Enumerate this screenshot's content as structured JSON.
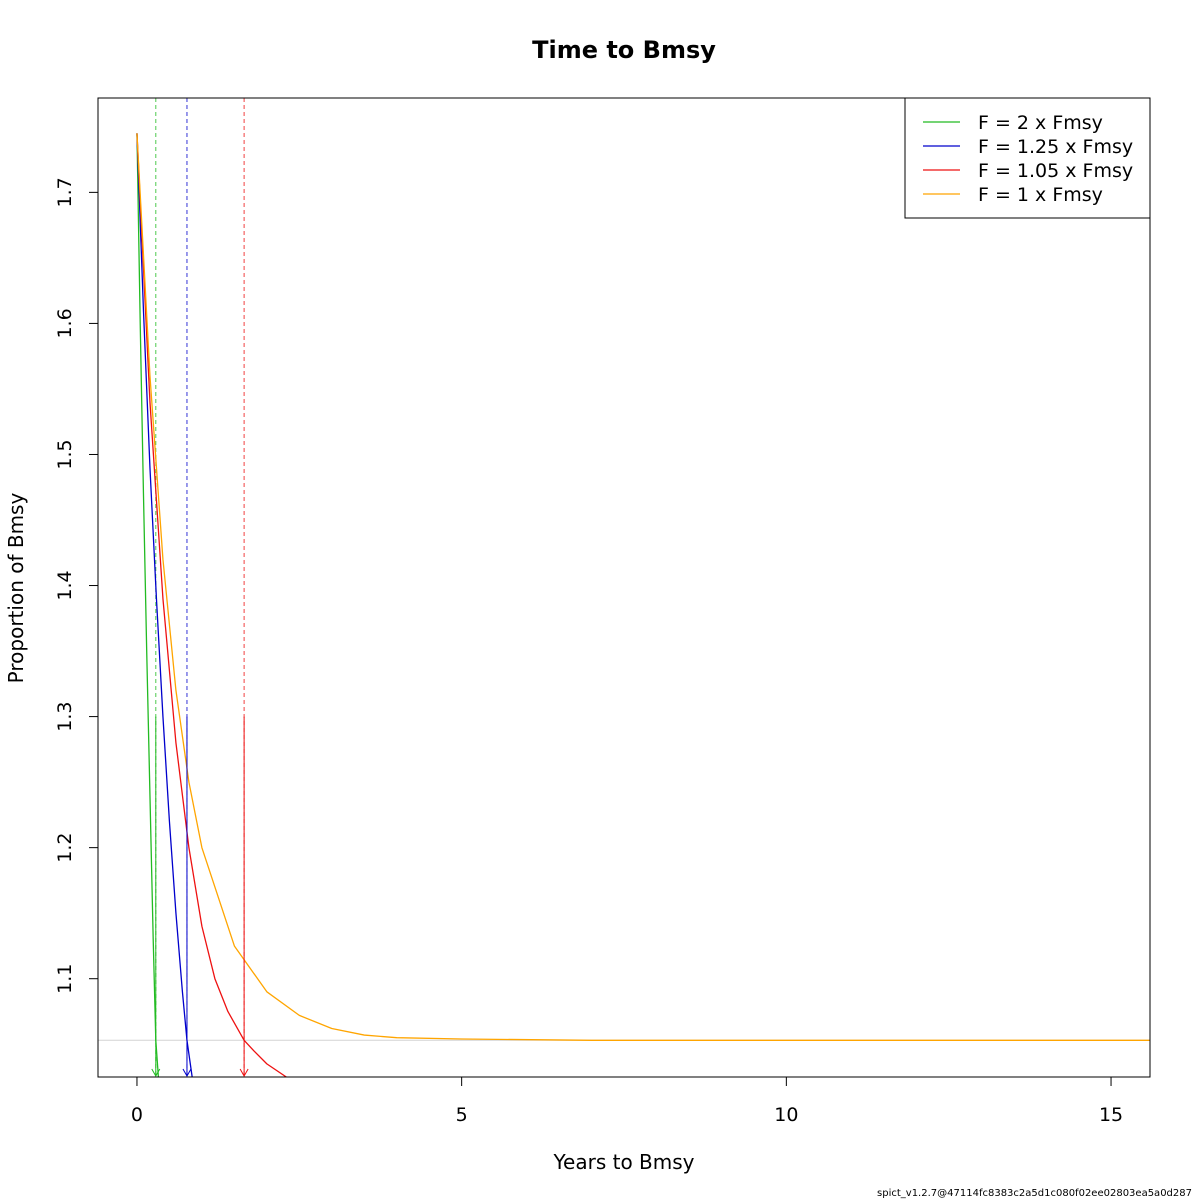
{
  "chart_data": {
    "type": "line",
    "title": "Time to Bmsy",
    "xlabel": "Years to Bmsy",
    "ylabel": "Proportion of Bmsy",
    "xlim": [
      -0.6,
      15.6
    ],
    "ylim": [
      1.025,
      1.772
    ],
    "x_ticks": [
      0,
      5,
      10,
      15
    ],
    "x_tick_labels": [
      "0",
      "5",
      "10",
      "15"
    ],
    "y_ticks": [
      1.1,
      1.2,
      1.3,
      1.4,
      1.5,
      1.6,
      1.7
    ],
    "y_tick_labels": [
      "1.1",
      "1.2",
      "1.3",
      "1.4",
      "1.5",
      "1.6",
      "1.7"
    ],
    "grid": false,
    "legend_position": "top-right",
    "reference_line": {
      "y": 1.053,
      "color": "#d3d3d3"
    },
    "start_value": 1.745,
    "series": [
      {
        "name": "F = 2 x Fmsy",
        "color": "#22bb22",
        "time_to_bmsy": 0.29,
        "x_end": 0.33,
        "points": [
          [
            0,
            1.745
          ],
          [
            0.05,
            1.6
          ],
          [
            0.1,
            1.47
          ],
          [
            0.15,
            1.35
          ],
          [
            0.2,
            1.24
          ],
          [
            0.25,
            1.13
          ],
          [
            0.29,
            1.053
          ],
          [
            0.33,
            1.025
          ]
        ]
      },
      {
        "name": "F = 1.25 x Fmsy",
        "color": "#0000cc",
        "time_to_bmsy": 0.77,
        "x_end": 0.85,
        "points": [
          [
            0,
            1.745
          ],
          [
            0.1,
            1.61
          ],
          [
            0.2,
            1.49
          ],
          [
            0.3,
            1.39
          ],
          [
            0.4,
            1.3
          ],
          [
            0.5,
            1.22
          ],
          [
            0.6,
            1.15
          ],
          [
            0.7,
            1.09
          ],
          [
            0.77,
            1.053
          ],
          [
            0.85,
            1.025
          ]
        ]
      },
      {
        "name": "F = 1.05 x Fmsy",
        "color": "#ee1111",
        "time_to_bmsy": 1.65,
        "x_end": 2.3,
        "points": [
          [
            0,
            1.745
          ],
          [
            0.2,
            1.54
          ],
          [
            0.4,
            1.39
          ],
          [
            0.6,
            1.28
          ],
          [
            0.8,
            1.2
          ],
          [
            1.0,
            1.14
          ],
          [
            1.2,
            1.1
          ],
          [
            1.4,
            1.075
          ],
          [
            1.65,
            1.053
          ],
          [
            1.8,
            1.045
          ],
          [
            2.0,
            1.035
          ],
          [
            2.3,
            1.025
          ]
        ]
      },
      {
        "name": "F = 1 x Fmsy",
        "color": "#ffa500",
        "time_to_bmsy": null,
        "x_end": 15.6,
        "points": [
          [
            0,
            1.745
          ],
          [
            0.2,
            1.56
          ],
          [
            0.4,
            1.42
          ],
          [
            0.6,
            1.32
          ],
          [
            0.8,
            1.25
          ],
          [
            1.0,
            1.2
          ],
          [
            1.5,
            1.125
          ],
          [
            2.0,
            1.09
          ],
          [
            2.5,
            1.072
          ],
          [
            3.0,
            1.062
          ],
          [
            3.5,
            1.057
          ],
          [
            4.0,
            1.055
          ],
          [
            5.0,
            1.054
          ],
          [
            7.0,
            1.053
          ],
          [
            10.0,
            1.053
          ],
          [
            15.6,
            1.053
          ]
        ]
      }
    ]
  },
  "footer": {
    "version": "spict_v1.2.7@47114fc8383c2a5d1c080f02ee02803ea5a0d287"
  }
}
